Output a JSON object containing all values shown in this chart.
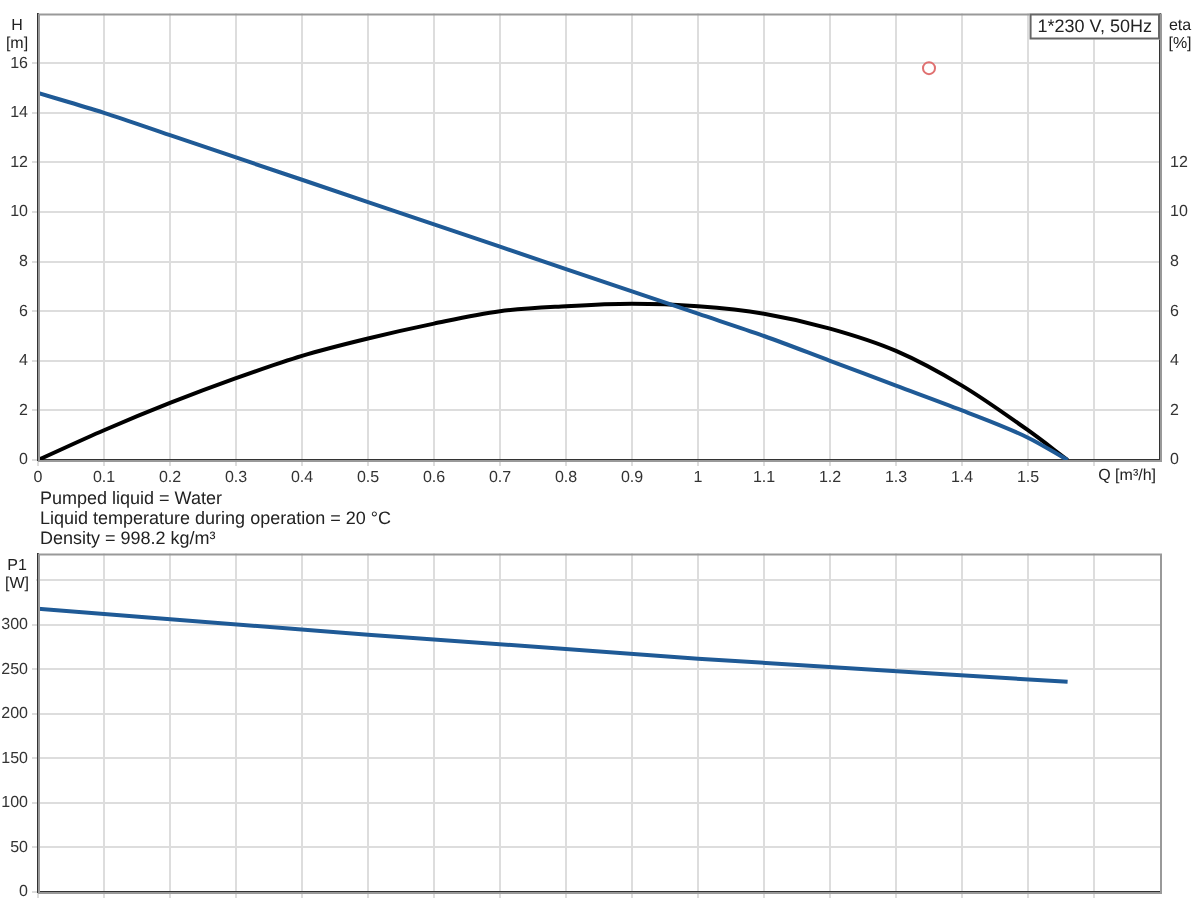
{
  "chart_data": [
    {
      "type": "line",
      "title": "1*230 V, 50Hz",
      "ylabel": "H [m]",
      "y2label": "eta [%]",
      "xlabel": "Q [m³/h]",
      "annotations": [
        "Pumped liquid = Water",
        "Liquid temperature during operation = 20 °C",
        "Density = 998.2 kg/m³"
      ],
      "x": [
        0,
        0.1,
        0.2,
        0.3,
        0.4,
        0.5,
        0.6,
        0.7,
        0.8,
        0.9,
        1.0,
        1.1,
        1.2,
        1.3,
        1.4,
        1.5,
        1.56
      ],
      "series": [
        {
          "color": "#1f5a96",
          "values": [
            14.8,
            14.0,
            13.1,
            12.2,
            11.3,
            10.4,
            9.5,
            8.6,
            7.7,
            6.8,
            5.9,
            5.0,
            4.0,
            3.0,
            2.0,
            0.9,
            0
          ]
        },
        {
          "color": "#000000",
          "values": [
            0,
            1.2,
            2.3,
            3.3,
            4.2,
            4.9,
            5.5,
            6.0,
            6.2,
            6.3,
            6.2,
            5.9,
            5.3,
            4.4,
            3.0,
            1.2,
            0
          ]
        },
        {
          "type": "scatter",
          "marker": "circle",
          "color": "#e07070",
          "x": [
            1.35
          ],
          "values": [
            15.8
          ]
        }
      ],
      "xlim": [
        0,
        1.7
      ],
      "xticks": [
        0,
        0.1,
        0.2,
        0.3,
        0.4,
        0.5,
        0.6,
        0.7,
        0.8,
        0.9,
        1.0,
        1.1,
        1.2,
        1.3,
        1.4,
        1.5,
        {
          "value": 1.6,
          "label": null
        }
      ],
      "ylim": [
        0,
        18
      ],
      "yticks": [
        0,
        2,
        4,
        6,
        8,
        10,
        12,
        14,
        16
      ],
      "y2lim": [
        0,
        18
      ],
      "y2ticks": [
        0,
        2,
        4,
        6,
        8,
        10,
        12
      ],
      "grid": true,
      "legend": false,
      "marker": "none",
      "line_style": "solid"
    },
    {
      "type": "line",
      "ylabel": "P1 [W]",
      "x": [
        0,
        0.5,
        1.0,
        1.56
      ],
      "series": [
        {
          "color": "#1f5a96",
          "values": [
            318,
            289,
            262,
            236
          ]
        }
      ],
      "xlim": [
        0,
        1.7
      ],
      "xticks": [
        0,
        0.1,
        0.2,
        0.3,
        0.4,
        0.5,
        0.6,
        0.7,
        0.8,
        0.9,
        1.0,
        1.1,
        1.2,
        1.3,
        1.4,
        1.5,
        1.6
      ],
      "ylim": [
        0,
        380
      ],
      "yticks": [
        0,
        50,
        100,
        150,
        200,
        250,
        300,
        {
          "value": 350,
          "label": null
        }
      ],
      "grid": true,
      "legend": false,
      "marker": "none",
      "line_style": "solid",
      "tick_labels": "y"
    }
  ]
}
